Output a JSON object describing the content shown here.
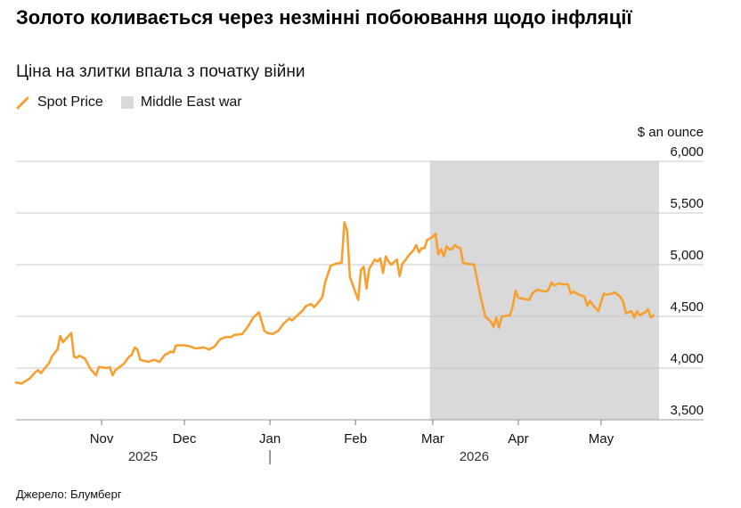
{
  "header": {
    "title": "Золото коливається через незмінні побоювання щодо інфляції",
    "subtitle": "Ціна на злитки впала з початку війни"
  },
  "legend": {
    "items": [
      {
        "label": "Spot Price",
        "kind": "line",
        "color": "#f5a030"
      },
      {
        "label": "Middle East war",
        "kind": "band",
        "color": "#d9d9d9"
      }
    ]
  },
  "footer": {
    "source": "Джерело: Блумберг"
  },
  "chart_data": {
    "type": "line",
    "title": "Золото коливається через незмінні побоювання щодо інфляції",
    "subtitle": "Ціна на злитки впала з початку війни",
    "ylabel": "$ an ounce",
    "ylim": [
      3500,
      6000
    ],
    "yticks": [
      3500,
      4000,
      4500,
      5000,
      5500,
      6000
    ],
    "ytick_labels": [
      "3,500",
      "4,000",
      "4,500",
      "5,000",
      "5,500",
      "6,000"
    ],
    "xlim": [
      "2025-10-01",
      "2026-05-22"
    ],
    "xticks": [
      {
        "date": "2025-11-01",
        "label": "Nov"
      },
      {
        "date": "2025-12-01",
        "label": "Dec"
      },
      {
        "date": "2026-01-01",
        "label": "Jan"
      },
      {
        "date": "2026-02-01",
        "label": "Feb"
      },
      {
        "date": "2026-03-01",
        "label": "Mar"
      },
      {
        "date": "2026-04-01",
        "label": "Apr"
      },
      {
        "date": "2026-05-01",
        "label": "May"
      }
    ],
    "year_labels": [
      {
        "label": "2025",
        "date": "2025-11-16"
      },
      {
        "label": "2026",
        "date": "2026-03-16"
      }
    ],
    "year_divider": "2026-01-01",
    "grid": true,
    "legend_position": "top-left",
    "shaded_regions": [
      {
        "name": "Middle East war",
        "start": "2026-02-28",
        "end": "2026-05-22",
        "color": "#d9d9d9"
      }
    ],
    "series": [
      {
        "name": "Spot Price",
        "color": "#f5a030",
        "points": [
          [
            "2025-10-01",
            3860
          ],
          [
            "2025-10-03",
            3850
          ],
          [
            "2025-10-06",
            3900
          ],
          [
            "2025-10-08",
            3960
          ],
          [
            "2025-10-09",
            3980
          ],
          [
            "2025-10-10",
            3950
          ],
          [
            "2025-10-13",
            4050
          ],
          [
            "2025-10-14",
            4110
          ],
          [
            "2025-10-16",
            4180
          ],
          [
            "2025-10-17",
            4310
          ],
          [
            "2025-10-18",
            4250
          ],
          [
            "2025-10-21",
            4340
          ],
          [
            "2025-10-22",
            4110
          ],
          [
            "2025-10-23",
            4100
          ],
          [
            "2025-10-24",
            4120
          ],
          [
            "2025-10-26",
            4090
          ],
          [
            "2025-10-28",
            3990
          ],
          [
            "2025-10-30",
            3930
          ],
          [
            "2025-10-31",
            4010
          ],
          [
            "2025-11-03",
            4000
          ],
          [
            "2025-11-04",
            4010
          ],
          [
            "2025-11-05",
            3930
          ],
          [
            "2025-11-06",
            3980
          ],
          [
            "2025-11-09",
            4040
          ],
          [
            "2025-11-11",
            4110
          ],
          [
            "2025-11-12",
            4130
          ],
          [
            "2025-11-13",
            4200
          ],
          [
            "2025-11-14",
            4180
          ],
          [
            "2025-11-15",
            4080
          ],
          [
            "2025-11-18",
            4060
          ],
          [
            "2025-11-20",
            4080
          ],
          [
            "2025-11-22",
            4060
          ],
          [
            "2025-11-24",
            4130
          ],
          [
            "2025-11-25",
            4140
          ],
          [
            "2025-11-26",
            4160
          ],
          [
            "2025-11-27",
            4150
          ],
          [
            "2025-11-28",
            4220
          ],
          [
            "2025-12-01",
            4220
          ],
          [
            "2025-12-03",
            4210
          ],
          [
            "2025-12-05",
            4190
          ],
          [
            "2025-12-08",
            4200
          ],
          [
            "2025-12-10",
            4180
          ],
          [
            "2025-12-12",
            4210
          ],
          [
            "2025-12-14",
            4280
          ],
          [
            "2025-12-16",
            4300
          ],
          [
            "2025-12-18",
            4300
          ],
          [
            "2025-12-19",
            4320
          ],
          [
            "2025-12-22",
            4330
          ],
          [
            "2025-12-24",
            4400
          ],
          [
            "2025-12-26",
            4490
          ],
          [
            "2025-12-28",
            4540
          ],
          [
            "2025-12-29",
            4450
          ],
          [
            "2025-12-30",
            4360
          ],
          [
            "2025-12-31",
            4340
          ],
          [
            "2026-01-02",
            4330
          ],
          [
            "2026-01-04",
            4360
          ],
          [
            "2026-01-06",
            4430
          ],
          [
            "2026-01-08",
            4480
          ],
          [
            "2026-01-09",
            4460
          ],
          [
            "2026-01-11",
            4510
          ],
          [
            "2026-01-13",
            4560
          ],
          [
            "2026-01-14",
            4600
          ],
          [
            "2026-01-16",
            4620
          ],
          [
            "2026-01-17",
            4590
          ],
          [
            "2026-01-19",
            4650
          ],
          [
            "2026-01-20",
            4690
          ],
          [
            "2026-01-21",
            4830
          ],
          [
            "2026-01-23",
            4990
          ],
          [
            "2026-01-25",
            5010
          ],
          [
            "2026-01-27",
            5020
          ],
          [
            "2026-01-28",
            5410
          ],
          [
            "2026-01-29",
            5330
          ],
          [
            "2026-01-30",
            4880
          ],
          [
            "2026-02-02",
            4660
          ],
          [
            "2026-02-03",
            4950
          ],
          [
            "2026-02-04",
            4980
          ],
          [
            "2026-02-05",
            4770
          ],
          [
            "2026-02-06",
            4960
          ],
          [
            "2026-02-08",
            5050
          ],
          [
            "2026-02-09",
            5030
          ],
          [
            "2026-02-10",
            5060
          ],
          [
            "2026-02-11",
            4920
          ],
          [
            "2026-02-12",
            5080
          ],
          [
            "2026-02-13",
            5030
          ],
          [
            "2026-02-14",
            5000
          ],
          [
            "2026-02-16",
            5050
          ],
          [
            "2026-02-17",
            4890
          ],
          [
            "2026-02-18",
            5010
          ],
          [
            "2026-02-19",
            5040
          ],
          [
            "2026-02-20",
            5080
          ],
          [
            "2026-02-22",
            5140
          ],
          [
            "2026-02-23",
            5190
          ],
          [
            "2026-02-24",
            5120
          ],
          [
            "2026-02-25",
            5160
          ],
          [
            "2026-02-26",
            5160
          ],
          [
            "2026-02-27",
            5240
          ],
          [
            "2026-03-01",
            5270
          ],
          [
            "2026-03-02",
            5300
          ],
          [
            "2026-03-03",
            5100
          ],
          [
            "2026-03-04",
            5150
          ],
          [
            "2026-03-05",
            5080
          ],
          [
            "2026-03-06",
            5180
          ],
          [
            "2026-03-07",
            5150
          ],
          [
            "2026-03-08",
            5150
          ],
          [
            "2026-03-09",
            5190
          ],
          [
            "2026-03-10",
            5170
          ],
          [
            "2026-03-11",
            5160
          ],
          [
            "2026-03-12",
            5020
          ],
          [
            "2026-03-13",
            5010
          ],
          [
            "2026-03-16",
            5000
          ],
          [
            "2026-03-18",
            4730
          ],
          [
            "2026-03-20",
            4500
          ],
          [
            "2026-03-22",
            4450
          ],
          [
            "2026-03-23",
            4400
          ],
          [
            "2026-03-24",
            4490
          ],
          [
            "2026-03-25",
            4390
          ],
          [
            "2026-03-26",
            4500
          ],
          [
            "2026-03-29",
            4510
          ],
          [
            "2026-03-30",
            4600
          ],
          [
            "2026-03-31",
            4750
          ],
          [
            "2026-04-01",
            4680
          ],
          [
            "2026-04-03",
            4670
          ],
          [
            "2026-04-05",
            4660
          ],
          [
            "2026-04-06",
            4720
          ],
          [
            "2026-04-08",
            4760
          ],
          [
            "2026-04-09",
            4750
          ],
          [
            "2026-04-11",
            4740
          ],
          [
            "2026-04-12",
            4760
          ],
          [
            "2026-04-13",
            4830
          ],
          [
            "2026-04-14",
            4800
          ],
          [
            "2026-04-16",
            4820
          ],
          [
            "2026-04-17",
            4810
          ],
          [
            "2026-04-19",
            4810
          ],
          [
            "2026-04-20",
            4720
          ],
          [
            "2026-04-21",
            4740
          ],
          [
            "2026-04-23",
            4710
          ],
          [
            "2026-04-25",
            4690
          ],
          [
            "2026-04-26",
            4600
          ],
          [
            "2026-04-27",
            4650
          ],
          [
            "2026-04-28",
            4610
          ],
          [
            "2026-04-30",
            4550
          ],
          [
            "2026-05-01",
            4640
          ],
          [
            "2026-05-02",
            4720
          ],
          [
            "2026-05-03",
            4710
          ],
          [
            "2026-05-05",
            4720
          ],
          [
            "2026-05-06",
            4730
          ],
          [
            "2026-05-08",
            4690
          ],
          [
            "2026-05-09",
            4640
          ],
          [
            "2026-05-10",
            4530
          ],
          [
            "2026-05-12",
            4550
          ],
          [
            "2026-05-13",
            4490
          ],
          [
            "2026-05-14",
            4550
          ],
          [
            "2026-05-15",
            4510
          ],
          [
            "2026-05-17",
            4540
          ],
          [
            "2026-05-18",
            4570
          ],
          [
            "2026-05-19",
            4490
          ],
          [
            "2026-05-20",
            4510
          ]
        ]
      }
    ]
  }
}
